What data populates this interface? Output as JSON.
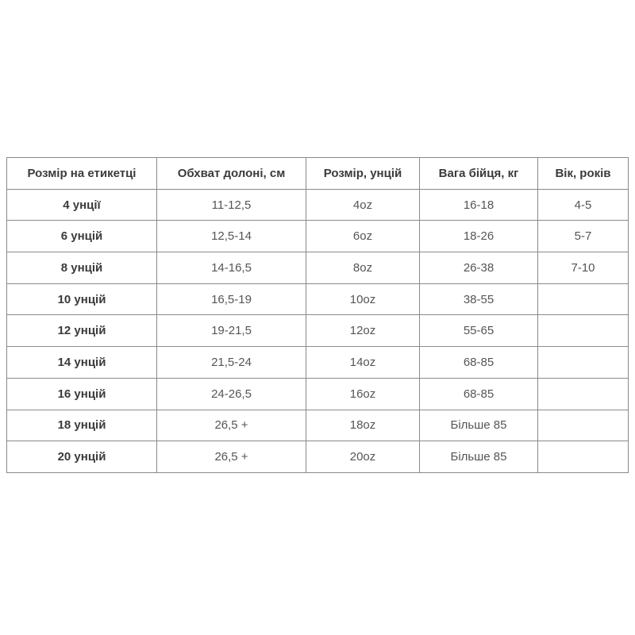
{
  "page": {
    "background_color": "#ffffff",
    "table_border_color": "#8a8a8a",
    "header_text_color": "#3b3b3b",
    "body_text_color": "#555555"
  },
  "chart_data": {
    "type": "table",
    "title": "",
    "columns": [
      "Розмір на етикетці",
      "Обхват долоні, см",
      "Розмір, унцій",
      "Вага бійця, кг",
      "Вік, років"
    ],
    "rows": [
      [
        "4 унції",
        "11-12,5",
        "4oz",
        "16-18",
        "4-5"
      ],
      [
        "6 унцій",
        "12,5-14",
        "6oz",
        "18-26",
        "5-7"
      ],
      [
        "8 унцій",
        "14-16,5",
        "8oz",
        "26-38",
        "7-10"
      ],
      [
        "10 унцій",
        "16,5-19",
        "10oz",
        "38-55",
        ""
      ],
      [
        "12 унцій",
        "19-21,5",
        "12oz",
        "55-65",
        ""
      ],
      [
        "14 унцій",
        "21,5-24",
        "14oz",
        "68-85",
        ""
      ],
      [
        "16 унцій",
        "24-26,5",
        "16oz",
        "68-85",
        ""
      ],
      [
        "18 унцій",
        "26,5 +",
        "18oz",
        "Більше 85",
        ""
      ],
      [
        "20 унцій",
        "26,5 +",
        "20oz",
        "Більше 85",
        ""
      ]
    ]
  }
}
